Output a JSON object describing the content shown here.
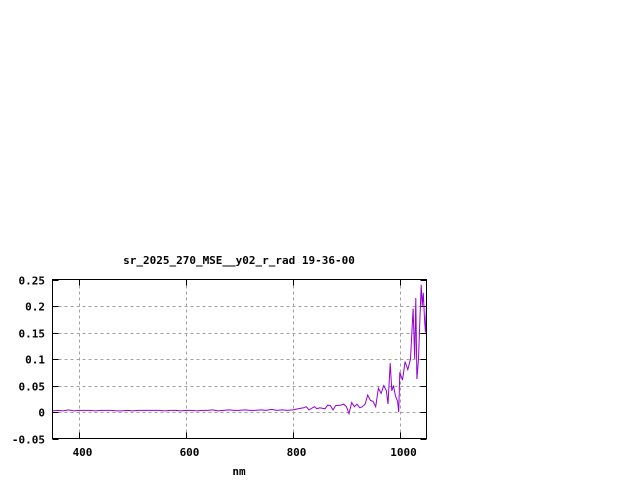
{
  "chart_data": {
    "type": "line",
    "title": "sr_2025_270_MSE__y02_r_rad 19-36-00",
    "xlabel": "nm",
    "ylabel": "",
    "xlim": [
      350,
      1050
    ],
    "ylim": [
      -0.05,
      0.25
    ],
    "xticks": [
      400,
      600,
      800,
      1000
    ],
    "xtick_labels": [
      "400",
      "600",
      "800",
      "1000"
    ],
    "yticks": [
      -0.05,
      0,
      0.05,
      0.1,
      0.15,
      0.2,
      0.25
    ],
    "ytick_labels": [
      "-0.05",
      "0",
      "0.05",
      "0.1",
      "0.15",
      "0.2",
      "0.25"
    ],
    "grid": true,
    "series_color": "#9400d3",
    "series": [
      {
        "x": [
          350,
          360,
          370,
          380,
          390,
          400,
          410,
          420,
          430,
          440,
          450,
          460,
          470,
          480,
          490,
          500,
          510,
          520,
          530,
          540,
          550,
          560,
          570,
          580,
          590,
          600,
          610,
          620,
          630,
          640,
          650,
          660,
          670,
          680,
          690,
          700,
          710,
          720,
          730,
          740,
          750,
          760,
          770,
          780,
          790,
          800,
          810,
          820,
          825,
          830,
          840,
          845,
          850,
          860,
          865,
          870,
          875,
          880,
          890,
          895,
          900,
          905,
          910,
          915,
          920,
          925,
          930,
          935,
          940,
          945,
          950,
          955,
          960,
          965,
          970,
          975,
          978,
          982,
          985,
          988,
          992,
          996,
          998,
          1000,
          1005,
          1010,
          1015,
          1020,
          1025,
          1028,
          1030,
          1032,
          1035,
          1038,
          1040,
          1042,
          1044,
          1046,
          1048,
          1050
        ],
        "y": [
          0.002,
          0.003,
          0.002,
          0.004,
          0.002,
          0.003,
          0.003,
          0.003,
          0.002,
          0.003,
          0.003,
          0.003,
          0.002,
          0.002,
          0.003,
          0.002,
          0.003,
          0.003,
          0.003,
          0.003,
          0.003,
          0.002,
          0.003,
          0.003,
          0.002,
          0.003,
          0.003,
          0.002,
          0.003,
          0.003,
          0.004,
          0.002,
          0.003,
          0.004,
          0.003,
          0.003,
          0.004,
          0.003,
          0.003,
          0.004,
          0.003,
          0.005,
          0.003,
          0.004,
          0.003,
          0.004,
          0.006,
          0.008,
          0.01,
          0.004,
          0.01,
          0.006,
          0.008,
          0.006,
          0.013,
          0.012,
          0.004,
          0.012,
          0.013,
          0.015,
          0.01,
          -0.003,
          0.018,
          0.01,
          0.015,
          0.008,
          0.01,
          0.015,
          0.032,
          0.022,
          0.02,
          0.01,
          0.045,
          0.035,
          0.05,
          0.04,
          0.015,
          0.092,
          0.04,
          0.05,
          0.03,
          0.02,
          0.0,
          0.075,
          0.06,
          0.095,
          0.08,
          0.1,
          0.195,
          0.1,
          0.215,
          0.062,
          0.1,
          0.185,
          0.24,
          0.2,
          0.225,
          0.18,
          0.15,
          0.205
        ]
      }
    ]
  }
}
